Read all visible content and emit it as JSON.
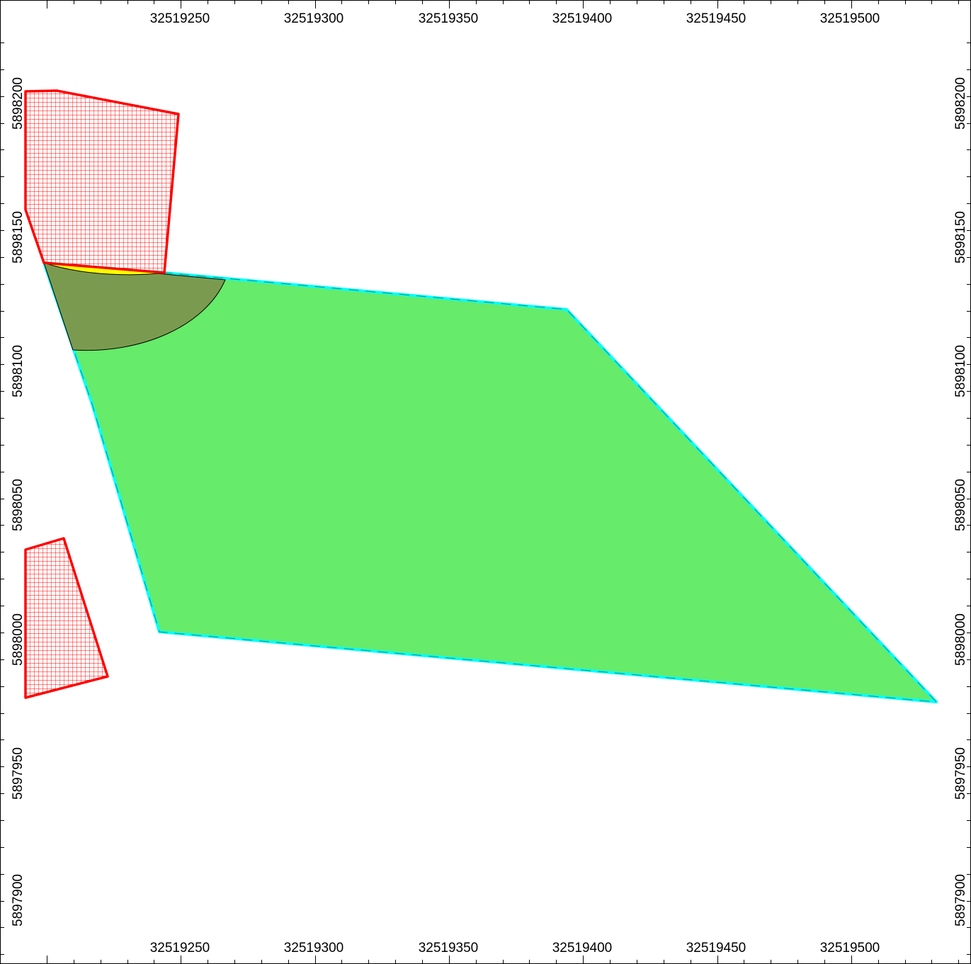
{
  "map": {
    "x_axis": {
      "labels": [
        "32519250",
        "32519300",
        "32519350",
        "32519400",
        "32519450",
        "32519500"
      ],
      "values": [
        32519250,
        32519300,
        32519350,
        32519400,
        32519450,
        32519500
      ]
    },
    "y_axis": {
      "labels": [
        "5898200",
        "5898150",
        "5898100",
        "5898050",
        "5898000",
        "5897950",
        "5897900"
      ],
      "values": [
        5898200,
        5898150,
        5898100,
        5898050,
        5898000,
        5897950,
        5897900
      ]
    },
    "colors": {
      "parcel_fill": "#66eb6a",
      "parcel_outline": "#00ffff",
      "buffer_fill": "#7a9b4f",
      "sliver_fill": "#ffff00",
      "hatched_outline": "#ff0000",
      "hatch_line": "#ff0000"
    },
    "layers": [
      "green-parcel",
      "buffer-sector",
      "yellow-sliver",
      "red-hatched-area-top",
      "red-hatched-area-bottom"
    ]
  }
}
